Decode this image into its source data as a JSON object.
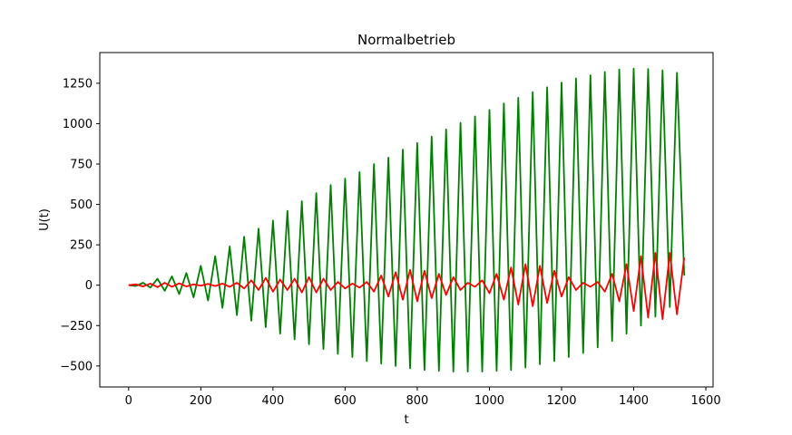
{
  "chart_data": {
    "type": "line",
    "title": "Normalbetrieb",
    "xlabel": "t",
    "ylabel": "U(t)",
    "xlim": [
      -80,
      1620
    ],
    "ylim": [
      -630,
      1440
    ],
    "xticks": [
      0,
      200,
      400,
      600,
      800,
      1000,
      1200,
      1400,
      1600
    ],
    "yticks": [
      -500,
      -250,
      0,
      250,
      500,
      750,
      1000,
      1250
    ],
    "grid": false,
    "series": [
      {
        "color": "#008000",
        "period": 40,
        "points": [
          [
            0,
            0
          ],
          [
            40,
            15
          ],
          [
            80,
            40
          ],
          [
            120,
            55
          ],
          [
            160,
            75
          ],
          [
            200,
            120
          ],
          [
            240,
            180
          ],
          [
            280,
            240
          ],
          [
            320,
            300
          ],
          [
            360,
            350
          ],
          [
            400,
            400
          ],
          [
            440,
            460
          ],
          [
            480,
            520
          ],
          [
            520,
            570
          ],
          [
            560,
            620
          ],
          [
            600,
            660
          ],
          [
            640,
            700
          ],
          [
            680,
            750
          ],
          [
            720,
            790
          ],
          [
            760,
            840
          ],
          [
            800,
            880
          ],
          [
            840,
            920
          ],
          [
            880,
            965
          ],
          [
            920,
            1005
          ],
          [
            960,
            1045
          ],
          [
            1000,
            1085
          ],
          [
            1040,
            1125
          ],
          [
            1080,
            1160
          ],
          [
            1120,
            1195
          ],
          [
            1160,
            1225
          ],
          [
            1200,
            1255
          ],
          [
            1240,
            1280
          ],
          [
            1280,
            1300
          ],
          [
            1320,
            1320
          ],
          [
            1360,
            1335
          ],
          [
            1400,
            1340
          ],
          [
            1440,
            1338
          ],
          [
            1480,
            1330
          ],
          [
            1520,
            1315
          ],
          [
            1540,
            60
          ]
        ],
        "troughs": [
          [
            20,
            -5
          ],
          [
            60,
            -15
          ],
          [
            100,
            -35
          ],
          [
            140,
            -55
          ],
          [
            180,
            -75
          ],
          [
            220,
            -95
          ],
          [
            260,
            -140
          ],
          [
            300,
            -185
          ],
          [
            340,
            -220
          ],
          [
            380,
            -260
          ],
          [
            420,
            -300
          ],
          [
            460,
            -335
          ],
          [
            500,
            -365
          ],
          [
            540,
            -395
          ],
          [
            580,
            -425
          ],
          [
            620,
            -445
          ],
          [
            660,
            -470
          ],
          [
            700,
            -485
          ],
          [
            740,
            -500
          ],
          [
            780,
            -515
          ],
          [
            820,
            -525
          ],
          [
            860,
            -530
          ],
          [
            900,
            -535
          ],
          [
            940,
            -535
          ],
          [
            980,
            -535
          ],
          [
            1020,
            -530
          ],
          [
            1060,
            -525
          ],
          [
            1100,
            -510
          ],
          [
            1140,
            -490
          ],
          [
            1180,
            -470
          ],
          [
            1220,
            -445
          ],
          [
            1260,
            -420
          ],
          [
            1300,
            -385
          ],
          [
            1340,
            -345
          ],
          [
            1380,
            -300
          ],
          [
            1420,
            -250
          ],
          [
            1460,
            -195
          ],
          [
            1500,
            -135
          ]
        ]
      },
      {
        "color": "#ff0000",
        "values_note_excluded": true,
        "points": [
          [
            0,
            0
          ],
          [
            20,
            5
          ],
          [
            40,
            -8
          ],
          [
            60,
            10
          ],
          [
            80,
            -12
          ],
          [
            100,
            15
          ],
          [
            120,
            -10
          ],
          [
            140,
            12
          ],
          [
            160,
            -8
          ],
          [
            180,
            5
          ],
          [
            200,
            -3
          ],
          [
            220,
            8
          ],
          [
            240,
            -5
          ],
          [
            260,
            10
          ],
          [
            280,
            -10
          ],
          [
            300,
            15
          ],
          [
            320,
            -20
          ],
          [
            340,
            30
          ],
          [
            360,
            -30
          ],
          [
            380,
            45
          ],
          [
            400,
            -40
          ],
          [
            420,
            35
          ],
          [
            440,
            -30
          ],
          [
            460,
            40
          ],
          [
            480,
            -45
          ],
          [
            500,
            50
          ],
          [
            520,
            -45
          ],
          [
            540,
            40
          ],
          [
            560,
            -30
          ],
          [
            580,
            20
          ],
          [
            600,
            -20
          ],
          [
            620,
            10
          ],
          [
            640,
            -15
          ],
          [
            660,
            20
          ],
          [
            680,
            -40
          ],
          [
            700,
            60
          ],
          [
            720,
            -70
          ],
          [
            740,
            80
          ],
          [
            760,
            -90
          ],
          [
            780,
            95
          ],
          [
            800,
            -100
          ],
          [
            820,
            90
          ],
          [
            840,
            -80
          ],
          [
            860,
            70
          ],
          [
            880,
            -60
          ],
          [
            900,
            50
          ],
          [
            920,
            -30
          ],
          [
            940,
            15
          ],
          [
            960,
            -10
          ],
          [
            980,
            30
          ],
          [
            1000,
            -50
          ],
          [
            1020,
            70
          ],
          [
            1040,
            -90
          ],
          [
            1060,
            110
          ],
          [
            1080,
            -120
          ],
          [
            1100,
            130
          ],
          [
            1120,
            -130
          ],
          [
            1140,
            120
          ],
          [
            1160,
            -110
          ],
          [
            1180,
            90
          ],
          [
            1200,
            -70
          ],
          [
            1220,
            50
          ],
          [
            1240,
            -30
          ],
          [
            1260,
            15
          ],
          [
            1280,
            -10
          ],
          [
            1300,
            20
          ],
          [
            1320,
            -40
          ],
          [
            1340,
            70
          ],
          [
            1360,
            -100
          ],
          [
            1380,
            130
          ],
          [
            1400,
            -160
          ],
          [
            1420,
            180
          ],
          [
            1440,
            -200
          ],
          [
            1460,
            200
          ],
          [
            1480,
            -210
          ],
          [
            1500,
            200
          ],
          [
            1520,
            -180
          ],
          [
            1540,
            170
          ]
        ]
      }
    ]
  }
}
